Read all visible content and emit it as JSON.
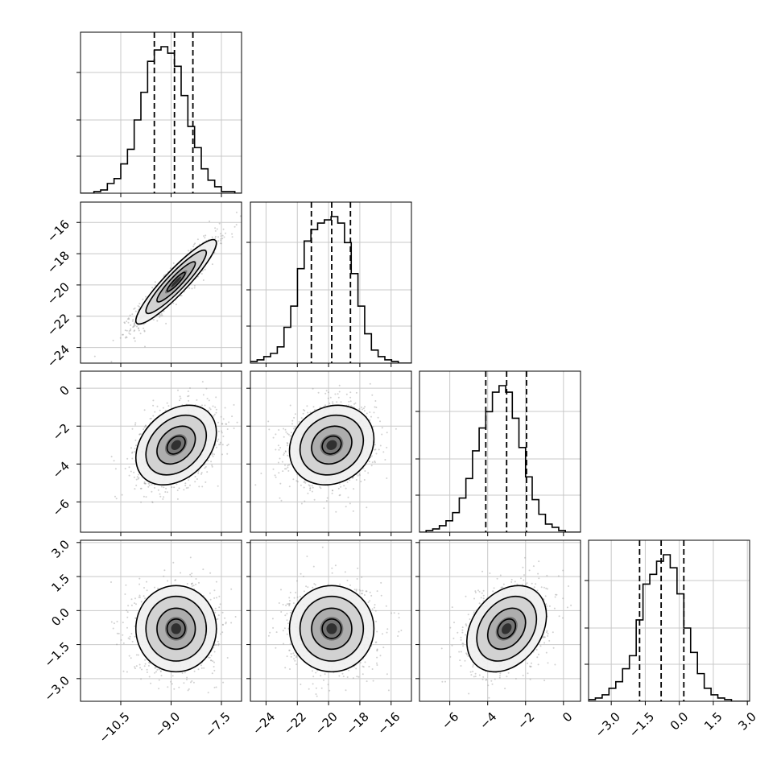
{
  "chart_data": {
    "type": "corner",
    "parameters": 4,
    "panel_colors": {
      "frame": "#000000",
      "grid": "#c8c8c8",
      "scatter": "#9a9a9a",
      "contour": "#000000",
      "hist": "#000000",
      "quantile": "#000000"
    },
    "axes": [
      {
        "range": [
          -11.7,
          -6.9
        ],
        "ticks": [
          -10.5,
          -9.0,
          -7.5
        ],
        "tick_labels": [
          "−10.5",
          "−9.0",
          "−7.5"
        ]
      },
      {
        "range": [
          -25.0,
          -14.7
        ],
        "ticks": [
          -24,
          -22,
          -20,
          -18,
          -16
        ],
        "tick_labels": [
          "−24",
          "−22",
          "−20",
          "−18",
          "−16"
        ]
      },
      {
        "range": [
          -7.6,
          0.9
        ],
        "ticks": [
          -6,
          -4,
          -2,
          0
        ],
        "tick_labels": [
          "−6",
          "−4",
          "−2",
          "0"
        ]
      },
      {
        "range": [
          -4.0,
          3.1
        ],
        "ticks": [
          -3.0,
          -1.5,
          0.0,
          1.5,
          3.0
        ],
        "tick_labels": [
          "−3.0",
          "−1.5",
          "0.0",
          "1.5",
          "3.0"
        ]
      }
    ],
    "marginals": [
      {
        "quantiles": [
          -9.5,
          -8.9,
          -8.35
        ],
        "bins": [
          -11.7,
          -11.5,
          -11.3,
          -11.1,
          -10.9,
          -10.7,
          -10.5,
          -10.3,
          -10.1,
          -9.9,
          -9.7,
          -9.5,
          -9.3,
          -9.1,
          -8.9,
          -8.7,
          -8.5,
          -8.3,
          -8.1,
          -7.9,
          -7.7,
          -7.5,
          -7.3,
          -7.1,
          -6.9
        ],
        "counts": [
          0,
          0,
          1,
          2,
          6,
          9,
          18,
          27,
          45,
          62,
          81,
          88,
          90,
          86,
          78,
          60,
          41,
          28,
          15,
          8,
          4,
          1,
          1,
          0
        ]
      },
      {
        "quantiles": [
          -21.1,
          -19.8,
          -18.6
        ],
        "bins": [
          -25.0,
          -24.57,
          -24.14,
          -23.71,
          -23.28,
          -22.85,
          -22.42,
          -21.99,
          -21.56,
          -21.13,
          -20.7,
          -20.27,
          -19.84,
          -19.41,
          -18.98,
          -18.55,
          -18.12,
          -17.69,
          -17.26,
          -16.83,
          -16.4,
          -15.97,
          -15.54,
          -15.11,
          -14.7
        ],
        "counts": [
          1,
          2,
          4,
          6,
          10,
          22,
          35,
          58,
          75,
          82,
          86,
          88,
          90,
          86,
          74,
          55,
          35,
          18,
          8,
          4,
          2,
          1,
          0,
          0
        ]
      },
      {
        "quantiles": [
          -4.1,
          -3.0,
          -1.95
        ],
        "bins": [
          -7.6,
          -7.25,
          -6.9,
          -6.55,
          -6.2,
          -5.85,
          -5.5,
          -5.15,
          -4.8,
          -4.45,
          -4.1,
          -3.75,
          -3.4,
          -3.05,
          -2.7,
          -2.35,
          -2.0,
          -1.65,
          -1.3,
          -0.95,
          -0.6,
          -0.25,
          0.1,
          0.45,
          0.9
        ],
        "counts": [
          0,
          1,
          2,
          4,
          7,
          12,
          21,
          33,
          50,
          64,
          74,
          86,
          90,
          86,
          70,
          52,
          34,
          20,
          11,
          5,
          3,
          1,
          0,
          0
        ]
      },
      {
        "quantiles": [
          -1.75,
          -0.8,
          0.2
        ],
        "bins": [
          -4.0,
          -3.7,
          -3.4,
          -3.1,
          -2.8,
          -2.5,
          -2.2,
          -1.9,
          -1.6,
          -1.3,
          -1.0,
          -0.7,
          -0.4,
          -0.1,
          0.2,
          0.5,
          0.8,
          1.1,
          1.4,
          1.7,
          2.0,
          2.3,
          2.6,
          2.9,
          3.1
        ],
        "counts": [
          1,
          2,
          4,
          8,
          12,
          20,
          28,
          50,
          72,
          78,
          86,
          90,
          82,
          66,
          45,
          30,
          17,
          8,
          4,
          2,
          1,
          0,
          0,
          0
        ]
      }
    ],
    "joint": [
      {
        "row": 1,
        "col": 0,
        "mean": [
          -8.85,
          -19.8
        ],
        "sd": [
          0.6,
          1.35
        ],
        "corr": 0.92
      },
      {
        "row": 2,
        "col": 0,
        "mean": [
          -8.85,
          -3.0
        ],
        "sd": [
          0.6,
          1.05
        ],
        "corr": 0.32
      },
      {
        "row": 2,
        "col": 1,
        "mean": [
          -19.8,
          -3.0
        ],
        "sd": [
          1.35,
          1.05
        ],
        "corr": 0.15
      },
      {
        "row": 3,
        "col": 0,
        "mean": [
          -8.85,
          -0.8
        ],
        "sd": [
          0.6,
          0.95
        ],
        "corr": 0.0
      },
      {
        "row": 3,
        "col": 1,
        "mean": [
          -19.8,
          -0.8
        ],
        "sd": [
          1.35,
          0.95
        ],
        "corr": 0.0
      },
      {
        "row": 3,
        "col": 2,
        "mean": [
          -3.0,
          -0.8
        ],
        "sd": [
          1.05,
          0.95
        ],
        "corr": 0.3
      }
    ]
  }
}
